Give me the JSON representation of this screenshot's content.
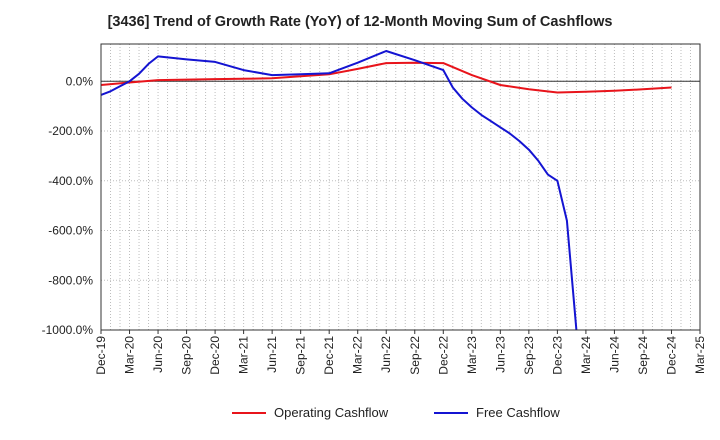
{
  "chart_data": {
    "type": "line",
    "title": "[3436]  Trend of Growth Rate (YoY) of 12-Month Moving Sum of Cashflows",
    "xlabel": "",
    "ylabel": "",
    "ylim": [
      -1000,
      150
    ],
    "y_ticks": [
      "0.0%",
      "-200.0%",
      "-400.0%",
      "-600.0%",
      "-800.0%",
      "-1000.0%"
    ],
    "y_tick_values": [
      0,
      -200,
      -400,
      -600,
      -800,
      -1000
    ],
    "x_ticks": [
      "Dec-19",
      "Mar-20",
      "Jun-20",
      "Sep-20",
      "Dec-20",
      "Mar-21",
      "Jun-21",
      "Sep-21",
      "Dec-21",
      "Mar-22",
      "Jun-22",
      "Sep-22",
      "Dec-22",
      "Mar-23",
      "Jun-23",
      "Sep-23",
      "Dec-23",
      "Mar-24",
      "Jun-24",
      "Sep-24",
      "Dec-24",
      "Mar-25"
    ],
    "grid": true,
    "legend_position": "bottom",
    "series": [
      {
        "name": "Operating Cashflow",
        "color": "#e8141b",
        "x": [
          "Dec-19",
          "Mar-20",
          "Jun-20",
          "Sep-20",
          "Dec-20",
          "Mar-21",
          "Jun-21",
          "Sep-21",
          "Dec-21",
          "Mar-22",
          "Jun-22",
          "Sep-22",
          "Dec-22",
          "Mar-23",
          "Jun-23",
          "Sep-23",
          "Dec-23",
          "Mar-24",
          "Jun-24",
          "Sep-24",
          "Dec-24"
        ],
        "values": [
          -15,
          -5,
          5,
          7,
          9,
          10,
          12,
          20,
          28,
          50,
          73,
          75,
          73,
          25,
          -15,
          -32,
          -45,
          -42,
          -38,
          -32,
          -25
        ]
      },
      {
        "name": "Free Cashflow",
        "color": "#1414d2",
        "x": [
          "Dec-19",
          "Jan-20",
          "Feb-20",
          "Mar-20",
          "Apr-20",
          "May-20",
          "Jun-20",
          "Sep-20",
          "Dec-20",
          "Mar-21",
          "Jun-21",
          "Sep-21",
          "Dec-21",
          "Mar-22",
          "Jun-22",
          "Sep-22",
          "Dec-22",
          "Jan-23",
          "Feb-23",
          "Mar-23",
          "Apr-23",
          "May-23",
          "Jun-23",
          "Jul-23",
          "Aug-23",
          "Sep-23",
          "Oct-23",
          "Nov-23",
          "Dec-23",
          "Jan-24",
          "Feb-24"
        ],
        "values": [
          -55,
          -40,
          -20,
          0,
          30,
          70,
          100,
          88,
          78,
          45,
          25,
          28,
          32,
          75,
          122,
          85,
          45,
          -25,
          -70,
          -105,
          -135,
          -160,
          -185,
          -210,
          -240,
          -275,
          -320,
          -375,
          -400,
          -560,
          -1000
        ]
      }
    ]
  }
}
